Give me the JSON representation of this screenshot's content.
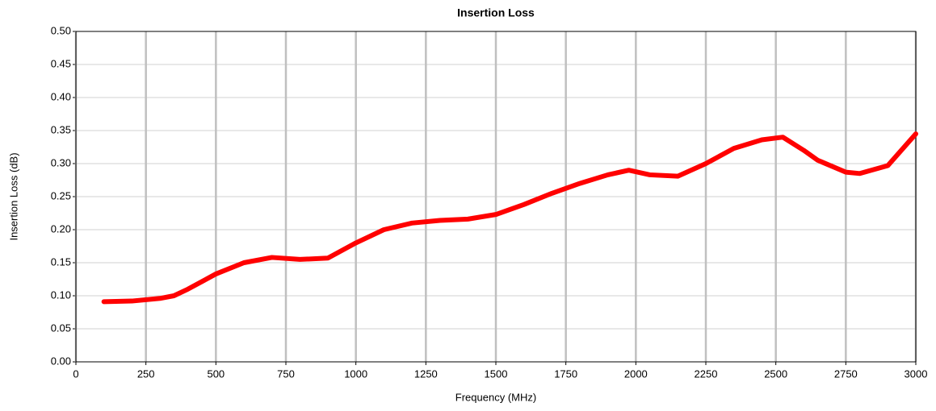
{
  "chart_data": {
    "type": "line",
    "title": "Insertion Loss",
    "x_label": "Frequency (MHz)",
    "y_label": "Insertion Loss (dB)",
    "x": [
      100,
      200,
      300,
      350,
      400,
      500,
      600,
      700,
      800,
      900,
      1000,
      1100,
      1200,
      1300,
      1400,
      1500,
      1600,
      1700,
      1800,
      1900,
      1975,
      2050,
      2150,
      2250,
      2350,
      2450,
      2525,
      2600,
      2650,
      2750,
      2800,
      2900,
      3000
    ],
    "series": [
      {
        "name": "Insertion Loss",
        "color": "#ff0000",
        "values": [
          0.091,
          0.092,
          0.096,
          0.1,
          0.11,
          0.133,
          0.15,
          0.158,
          0.155,
          0.157,
          0.18,
          0.2,
          0.21,
          0.214,
          0.216,
          0.223,
          0.238,
          0.255,
          0.27,
          0.283,
          0.29,
          0.283,
          0.281,
          0.3,
          0.323,
          0.336,
          0.34,
          0.32,
          0.305,
          0.287,
          0.285,
          0.297,
          0.345
        ]
      }
    ],
    "xlim": [
      0,
      3000
    ],
    "xticks": [
      0,
      250,
      500,
      750,
      1000,
      1250,
      1500,
      1750,
      2000,
      2250,
      2500,
      2750,
      3000
    ],
    "ylim": [
      0,
      0.5
    ],
    "yticks": [
      {
        "value": 0,
        "label": "0.00"
      },
      0.05,
      {
        "value": 0.1,
        "label": "0.10"
      },
      0.15,
      {
        "value": 0.2,
        "label": "0.20"
      },
      0.25,
      {
        "value": 0.3,
        "label": "0.30"
      },
      0.35,
      {
        "value": 0.4,
        "label": "0.40"
      },
      0.45,
      {
        "value": 0.5,
        "label": "0.50"
      }
    ],
    "grid": true
  }
}
